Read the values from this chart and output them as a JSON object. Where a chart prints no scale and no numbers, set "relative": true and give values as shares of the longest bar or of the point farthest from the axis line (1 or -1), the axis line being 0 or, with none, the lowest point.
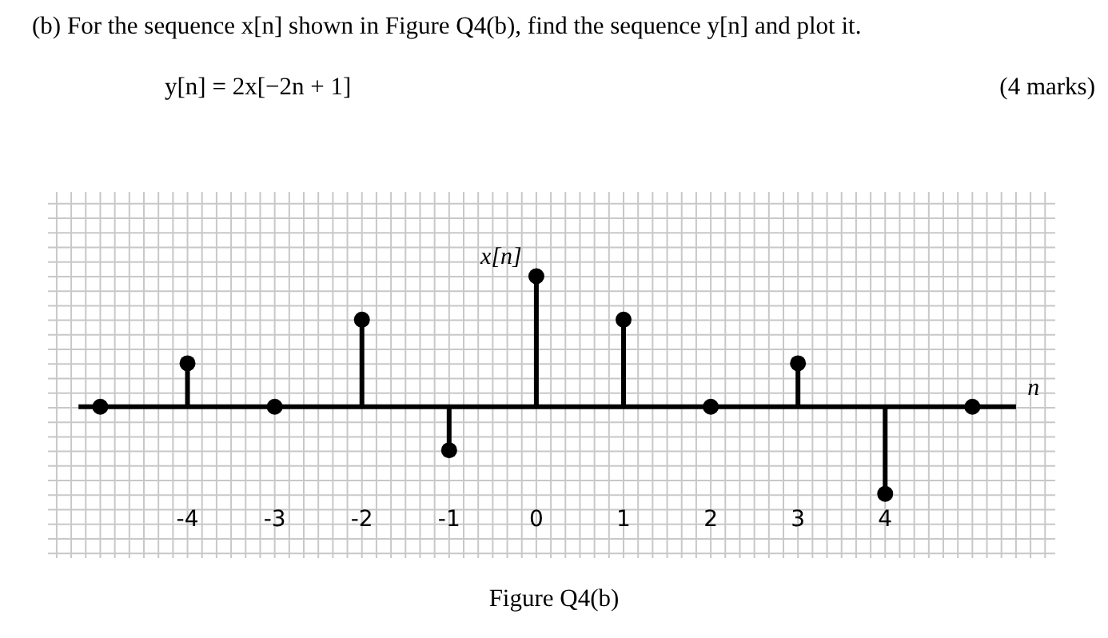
{
  "chart_data": {
    "type": "lollipop",
    "title": "(b) For the sequence x[n] shown in Figure Q4(b), find the sequence y[n] and plot it.",
    "subtitle": "y[n] = 2x[−2n + 1]",
    "annotations": [
      "(4 marks)",
      "Figure Q4(b)"
    ],
    "xlabel": "n",
    "ylabel": "x[n]",
    "relative": true,
    "x": [
      -5,
      -4,
      -3,
      -2,
      -1,
      0,
      1,
      2,
      3,
      4,
      5
    ],
    "values": [
      0,
      0.333,
      0,
      0.667,
      -0.333,
      1,
      0.667,
      0,
      0.333,
      -0.667,
      0
    ],
    "color": "#000000",
    "marker": "circle",
    "grid": true,
    "xlim": [
      -5.6,
      5.95
    ],
    "xticks": [
      -4,
      -3,
      -2,
      -1,
      0,
      1,
      2,
      3,
      4
    ]
  }
}
